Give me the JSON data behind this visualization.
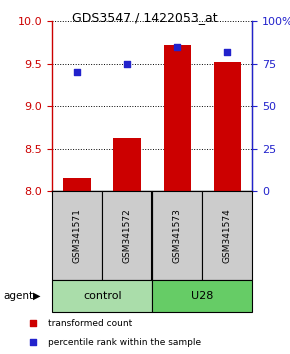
{
  "title": "GDS3547 / 1422053_at",
  "samples": [
    "GSM341571",
    "GSM341572",
    "GSM341573",
    "GSM341574"
  ],
  "bar_values": [
    8.15,
    8.62,
    9.72,
    9.52
  ],
  "dot_values": [
    70,
    75,
    85,
    82
  ],
  "left_ylim": [
    8.0,
    10.0
  ],
  "right_ylim": [
    0,
    100
  ],
  "left_yticks": [
    8.0,
    8.5,
    9.0,
    9.5,
    10.0
  ],
  "right_yticks": [
    0,
    25,
    50,
    75,
    100
  ],
  "bar_color": "#cc0000",
  "dot_color": "#2222cc",
  "bar_width": 0.55,
  "groups": [
    {
      "label": "control",
      "indices": [
        0,
        1
      ],
      "color": "#aaddaa"
    },
    {
      "label": "U28",
      "indices": [
        2,
        3
      ],
      "color": "#66cc66"
    }
  ],
  "sample_box_color": "#cccccc",
  "agent_label": "agent",
  "legend_bar_label": "transformed count",
  "legend_dot_label": "percentile rank within the sample",
  "background_color": "#ffffff"
}
